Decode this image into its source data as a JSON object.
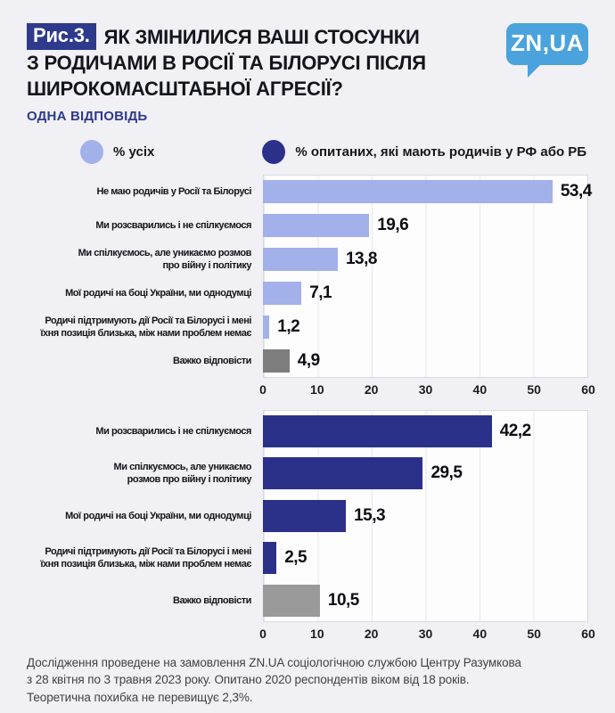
{
  "colors": {
    "navy": "#2e3a8c",
    "logo_blue": "#4aa3dc",
    "light_blue": "#a2b1ea",
    "dark_blue": "#2b3189",
    "gray_1": "#7d7d7d",
    "gray_2": "#9a9a9a",
    "background": "#f0f0f5"
  },
  "header": {
    "figure_tag": "Рис.3.",
    "title_lines": [
      "ЯК ЗМІНИЛИСЯ ВАШІ СТОСУНКИ",
      "З РОДИЧАМИ В РОСІЇ ТА БІЛОРУСІ ПІСЛЯ",
      "ШИРОКОМАСШТАБНОЇ АГРЕСІЇ?"
    ],
    "subtitle": "ОДНА ВІДПОВІДЬ",
    "logo_text": "ZN,UA"
  },
  "legend": [
    {
      "label": "% усіх",
      "color": "#a2b1ea"
    },
    {
      "label": "% опитаних, які мають родичів у РФ або РБ",
      "color": "#2b3189"
    }
  ],
  "chart_data": [
    {
      "type": "bar",
      "orientation": "horizontal",
      "series_name": "% усіх",
      "xlim": [
        0,
        60
      ],
      "xticks": [
        0,
        10,
        20,
        30,
        40,
        50,
        60
      ],
      "grid": "vertical",
      "bars": [
        {
          "label": "Не маю родичів у Росії та Білорусі",
          "value": 53.4,
          "display": "53,4",
          "color": "#a2b1ea"
        },
        {
          "label": "Ми розсварились і не спілкуємося",
          "value": 19.6,
          "display": "19,6",
          "color": "#a2b1ea"
        },
        {
          "label": "Ми спілкуємось, але уникаємо розмов\nпро війну і політику",
          "value": 13.8,
          "display": "13,8",
          "color": "#a2b1ea"
        },
        {
          "label": "Мої родичі на боці України, ми однодумці",
          "value": 7.1,
          "display": "7,1",
          "color": "#a2b1ea"
        },
        {
          "label": "Родичі підтримують дії Росії та Білорусі і мені\nїхня позиція близька, між нами проблем немає",
          "value": 1.2,
          "display": "1,2",
          "color": "#a2b1ea"
        },
        {
          "label": "Важко відповісти",
          "value": 4.9,
          "display": "4,9",
          "color": "#7d7d7d"
        }
      ]
    },
    {
      "type": "bar",
      "orientation": "horizontal",
      "series_name": "% опитаних, які мають родичів у РФ або РБ",
      "xlim": [
        0,
        60
      ],
      "xticks": [
        0,
        10,
        20,
        30,
        40,
        50,
        60
      ],
      "grid": "vertical",
      "bars": [
        {
          "label": "Ми розсварились і не спілкуємося",
          "value": 42.2,
          "display": "42,2",
          "color": "#2b3189"
        },
        {
          "label": "Ми спілкуємось, але уникаємо\nрозмов про війну і політику",
          "value": 29.5,
          "display": "29,5",
          "color": "#2b3189"
        },
        {
          "label": "Мої родичі на боці України, ми однодумці",
          "value": 15.3,
          "display": "15,3",
          "color": "#2b3189"
        },
        {
          "label": "Родичі підтримують дії Росії та Білорусі і мені\nїхня позиція близька, між нами проблем немає",
          "value": 2.5,
          "display": "2,5",
          "color": "#2b3189"
        },
        {
          "label": "Важко відповісти",
          "value": 10.5,
          "display": "10,5",
          "color": "#9a9a9a"
        }
      ]
    }
  ],
  "footer": {
    "lines": [
      "Дослідження проведене на замовлення ZN.UA соціологічною службою Центру Разумкова",
      "з 28 квітня по 3 травня 2023 року. Опитано 2020 респондентів віком від 18 років.",
      "Теоретична похибка не перевищує 2,3%."
    ]
  }
}
